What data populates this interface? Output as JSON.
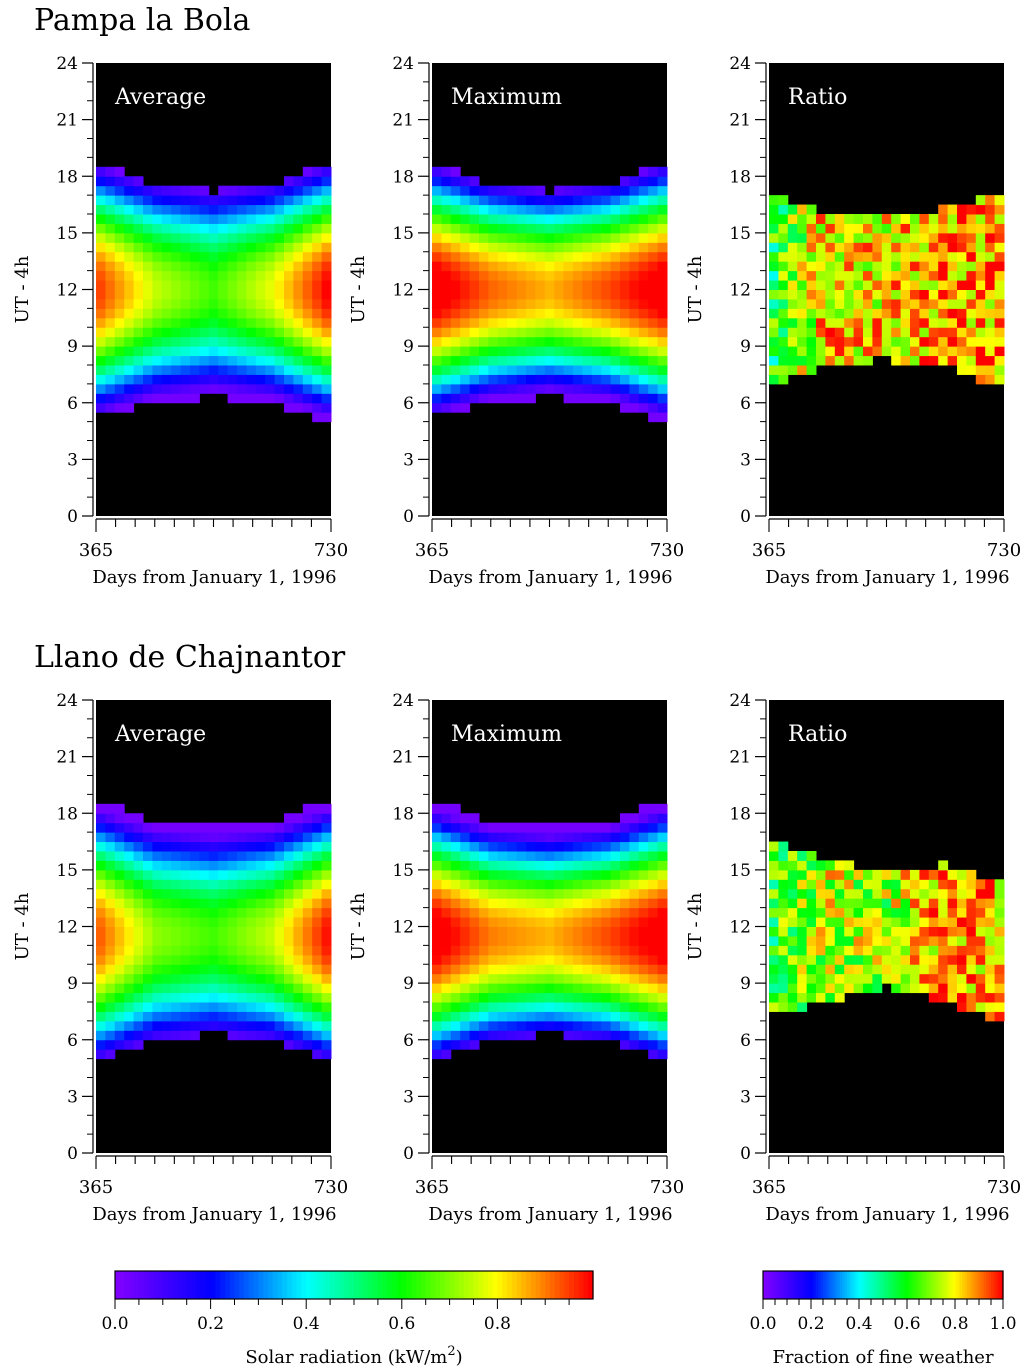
{
  "sections": [
    {
      "title": "Pampa la Bola"
    },
    {
      "title": "Llano de Chajnantor"
    }
  ],
  "panel_labels": [
    "Average",
    "Maximum",
    "Ratio"
  ],
  "axis": {
    "ylabel": "UT - 4h",
    "xlabel": "Days from January 1, 1996",
    "xticklabels": [
      "365",
      "730"
    ],
    "yticklabels": [
      "0",
      "3",
      "6",
      "9",
      "12",
      "15",
      "18",
      "21",
      "24"
    ]
  },
  "colorbars": {
    "radiation": {
      "label_main": "Solar radiation  (kW/m",
      "label_sup": "2",
      "label_tail": ")",
      "ticklabels": [
        "0.0",
        "0.2",
        "0.4",
        "0.6",
        "0.8"
      ],
      "range": [
        0.0,
        1.0
      ]
    },
    "ratio": {
      "label": "Fraction of fine weather",
      "ticklabels": [
        "0.0",
        "0.2",
        "0.4",
        "0.6",
        "0.8",
        "1.0"
      ],
      "range": [
        0.0,
        1.0
      ]
    }
  },
  "colors": {
    "background": "#000000",
    "low": "#8000ff",
    "high": "#ff0000",
    "colormap": [
      "#8000ff",
      "#0000ff",
      "#00ffff",
      "#00ff00",
      "#ffff00",
      "#ff0000"
    ]
  },
  "chart_data": [
    {
      "type": "heatmap",
      "site": "Pampa la Bola",
      "panel": "Average",
      "xlim": [
        365,
        730
      ],
      "ylim": [
        0,
        24
      ],
      "xlabel": "Days from January 1, 1996",
      "ylabel": "UT - 4h",
      "colorbar": "Solar radiation (kW/m2)",
      "sunrise_hours": [
        5.2,
        6.0,
        6.3,
        6.0,
        5.0
      ],
      "sunset_hours": [
        18.7,
        17.6,
        17.2,
        17.6,
        18.7
      ],
      "peak_values": [
        0.92,
        0.72,
        0.62,
        0.75,
        0.97
      ],
      "peak_hour": 12
    },
    {
      "type": "heatmap",
      "site": "Pampa la Bola",
      "panel": "Maximum",
      "xlim": [
        365,
        730
      ],
      "ylim": [
        0,
        24
      ],
      "xlabel": "Days from January 1, 1996",
      "ylabel": "UT - 4h",
      "colorbar": "Solar radiation (kW/m2)",
      "sunrise_hours": [
        5.2,
        6.0,
        6.3,
        6.0,
        5.0
      ],
      "sunset_hours": [
        18.7,
        17.6,
        17.2,
        17.6,
        18.7
      ],
      "peak_values": [
        1.0,
        0.88,
        0.82,
        0.9,
        1.0
      ],
      "peak_hour": 12
    },
    {
      "type": "heatmap",
      "site": "Pampa la Bola",
      "panel": "Ratio",
      "xlim": [
        365,
        730
      ],
      "ylim": [
        0,
        24
      ],
      "xlabel": "Days from January 1, 1996",
      "ylabel": "UT - 4h",
      "colorbar": "Fraction of fine weather",
      "day_start_hours": [
        7.0,
        8.0,
        8.3,
        7.9,
        6.8
      ],
      "day_end_hours": [
        17.2,
        16.0,
        15.8,
        16.3,
        17.2
      ],
      "typical_values": [
        0.55,
        0.85,
        0.8,
        0.9,
        0.85
      ]
    },
    {
      "type": "heatmap",
      "site": "Llano de Chajnantor",
      "panel": "Average",
      "xlim": [
        365,
        730
      ],
      "ylim": [
        0,
        24
      ],
      "xlabel": "Days from January 1, 1996",
      "ylabel": "UT - 4h",
      "colorbar": "Solar radiation (kW/m2)",
      "sunrise_hours": [
        5.0,
        6.0,
        6.3,
        6.0,
        4.9
      ],
      "sunset_hours": [
        18.7,
        17.6,
        17.3,
        17.6,
        18.7
      ],
      "peak_values": [
        0.9,
        0.68,
        0.62,
        0.72,
        0.96
      ],
      "peak_hour": 11.5
    },
    {
      "type": "heatmap",
      "site": "Llano de Chajnantor",
      "panel": "Maximum",
      "xlim": [
        365,
        730
      ],
      "ylim": [
        0,
        24
      ],
      "xlabel": "Days from January 1, 1996",
      "ylabel": "UT - 4h",
      "colorbar": "Solar radiation (kW/m2)",
      "sunrise_hours": [
        5.0,
        6.0,
        6.3,
        6.0,
        4.9
      ],
      "sunset_hours": [
        18.7,
        17.6,
        17.3,
        17.6,
        18.7
      ],
      "peak_values": [
        1.0,
        0.86,
        0.82,
        0.9,
        1.0
      ],
      "peak_hour": 11.5
    },
    {
      "type": "heatmap",
      "site": "Llano de Chajnantor",
      "panel": "Ratio",
      "xlim": [
        365,
        730
      ],
      "ylim": [
        0,
        24
      ],
      "xlabel": "Days from January 1, 1996",
      "ylabel": "UT - 4h",
      "colorbar": "Fraction of fine weather",
      "day_start_hours": [
        7.2,
        8.0,
        8.8,
        8.0,
        6.8
      ],
      "day_end_hours": [
        16.5,
        15.5,
        15.0,
        15.3,
        14.2
      ],
      "typical_values": [
        0.6,
        0.75,
        0.7,
        0.9,
        0.85
      ]
    }
  ]
}
